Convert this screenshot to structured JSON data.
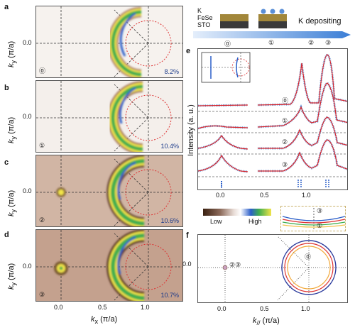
{
  "panels": {
    "a": {
      "letter": "a",
      "stage": "⓪",
      "percent": "8.2%"
    },
    "b": {
      "letter": "b",
      "stage": "①",
      "percent": "10.4%"
    },
    "c": {
      "letter": "c",
      "stage": "②",
      "percent": "10.6%"
    },
    "d": {
      "letter": "d",
      "stage": "③",
      "percent": "10.7%"
    }
  },
  "left_axes": {
    "ylabel_main": "k",
    "ylabel_sub": "y",
    "ylabel_unit": " (π/a)",
    "ytick": "0.0",
    "xlabel_main": "k",
    "xlabel_sub": "x",
    "xlabel_unit": " (π/a)",
    "xticks": [
      "0.0",
      "0.5",
      "1.0"
    ]
  },
  "schematic": {
    "layer_k": "K",
    "layer_fese": "FeSe",
    "layer_sto": "STO",
    "arrow_label": "K depositing",
    "stages": [
      "⓪",
      "①",
      "②",
      "③"
    ]
  },
  "panel_e": {
    "letter": "e",
    "ylabel": "Intensity (a. u.)",
    "xticks": [
      "0.0",
      "0.5",
      "1.0"
    ],
    "curve_labels": [
      "⓪",
      "①",
      "②",
      "③"
    ]
  },
  "colorbar": {
    "low": "Low",
    "high": "High"
  },
  "inset_bands": [
    "③",
    "①"
  ],
  "panel_f": {
    "letter": "f",
    "ytick": "0.0",
    "xticks": [
      "0.0",
      "0.5",
      "1.0"
    ],
    "xlabel_main": "k",
    "xlabel_sub": "//",
    "xlabel_unit": " (π/a)",
    "gamma_label": "②③",
    "m_label": "⓪"
  },
  "colors": {
    "yellow": "#f2e44a",
    "green": "#3fae4f",
    "blue": "#2a5ec9",
    "red": "#d33",
    "brown": "#8c6a5a",
    "fit_red": "#d8262b",
    "data_blue": "#5b8fd6"
  }
}
